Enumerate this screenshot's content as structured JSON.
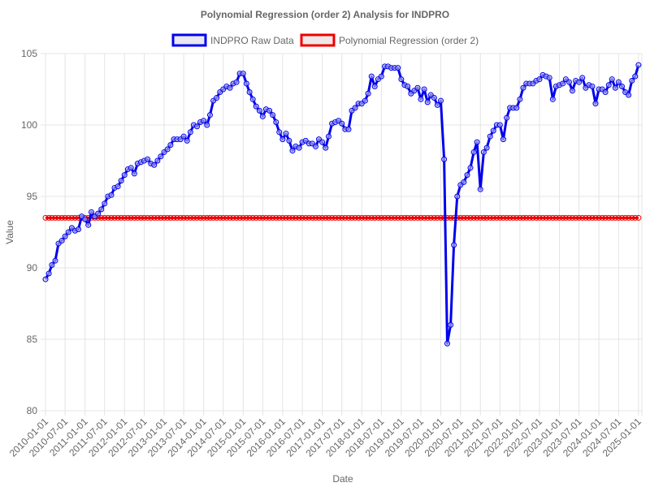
{
  "chart_data": {
    "type": "line",
    "title": "Polynomial Regression (order 2) Analysis for INDPRO",
    "xlabel": "Date",
    "ylabel": "Value",
    "ylim": [
      80,
      105
    ],
    "yticks": [
      80,
      85,
      90,
      95,
      100,
      105
    ],
    "grid": true,
    "legend_position": "top",
    "x_tick_labels": [
      "2010-01-01",
      "2010-07-01",
      "2011-01-01",
      "2011-07-01",
      "2012-01-01",
      "2012-07-01",
      "2013-01-01",
      "2013-07-01",
      "2014-01-01",
      "2014-07-01",
      "2015-01-01",
      "2015-07-01",
      "2016-01-01",
      "2016-07-01",
      "2017-01-01",
      "2017-07-01",
      "2018-01-01",
      "2018-07-01",
      "2019-01-01",
      "2019-07-01",
      "2020-01-01",
      "2020-07-01",
      "2021-01-01",
      "2021-07-01",
      "2022-01-01",
      "2022-07-01",
      "2023-01-01",
      "2023-07-01",
      "2024-01-01",
      "2024-07-01",
      "2025-01-01"
    ],
    "x_start": "2010-01-01",
    "x_end": "2025-02-01",
    "series": [
      {
        "name": "INDPRO Raw Data",
        "color": "#0000ee",
        "values": [
          89.2,
          89.6,
          90.2,
          90.5,
          91.7,
          91.9,
          92.2,
          92.5,
          92.8,
          92.6,
          92.7,
          93.6,
          93.4,
          93.0,
          93.9,
          93.6,
          93.8,
          94.1,
          94.5,
          95.0,
          95.1,
          95.6,
          95.7,
          96.1,
          96.5,
          96.9,
          97.0,
          96.6,
          97.3,
          97.4,
          97.5,
          97.6,
          97.3,
          97.2,
          97.5,
          97.8,
          98.1,
          98.3,
          98.6,
          99.0,
          99.0,
          99.0,
          99.2,
          98.9,
          99.5,
          100.0,
          99.9,
          100.2,
          100.3,
          100.0,
          100.7,
          101.7,
          101.9,
          102.3,
          102.5,
          102.7,
          102.6,
          102.9,
          103.0,
          103.6,
          103.6,
          102.9,
          102.3,
          101.8,
          101.3,
          101.0,
          100.6,
          101.1,
          101.0,
          100.7,
          100.2,
          99.5,
          99.0,
          99.4,
          98.9,
          98.2,
          98.5,
          98.4,
          98.8,
          98.9,
          98.7,
          98.7,
          98.5,
          99.0,
          98.8,
          98.4,
          99.2,
          100.1,
          100.2,
          100.3,
          100.1,
          99.7,
          99.7,
          101.0,
          101.2,
          101.5,
          101.5,
          101.7,
          102.2,
          103.4,
          102.7,
          103.2,
          103.4,
          104.1,
          104.1,
          104.0,
          104.0,
          104.0,
          103.2,
          102.8,
          102.7,
          102.2,
          102.4,
          102.6,
          101.8,
          102.5,
          101.6,
          102.1,
          101.9,
          101.4,
          101.7,
          97.6,
          84.7,
          86.0,
          91.6,
          95.0,
          95.8,
          96.0,
          96.5,
          97.0,
          98.1,
          98.8,
          95.5,
          98.1,
          98.4,
          99.2,
          99.6,
          100.0,
          100.0,
          99.0,
          100.5,
          101.2,
          101.2,
          101.2,
          101.8,
          102.6,
          102.9,
          102.9,
          102.9,
          103.1,
          103.2,
          103.5,
          103.4,
          103.3,
          101.8,
          102.7,
          102.8,
          102.9,
          103.2,
          103.0,
          102.4,
          103.1,
          103.0,
          103.3,
          102.6,
          102.8,
          102.7,
          101.5,
          102.5,
          102.5,
          102.3,
          102.8,
          103.2,
          102.6,
          103.0,
          102.7,
          102.3,
          102.1,
          103.1,
          103.4,
          104.2
        ]
      },
      {
        "name": "Polynomial Regression (order 2)",
        "color": "#ee0000",
        "constant_value": 93.5
      }
    ]
  }
}
